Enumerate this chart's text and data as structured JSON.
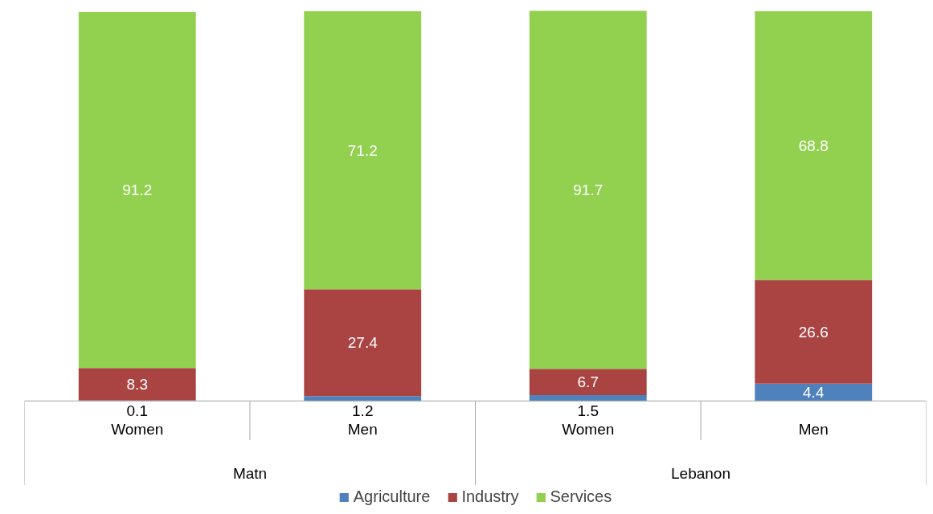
{
  "chart_data": {
    "type": "bar",
    "stacked": true,
    "categories": [
      "Women",
      "Men",
      "Women",
      "Men"
    ],
    "annotations": [
      "Matn",
      "Lebanon"
    ],
    "series": [
      {
        "name": "Agriculture",
        "color": "#4f81bd",
        "values": [
          0.1,
          1.2,
          1.5,
          4.4
        ]
      },
      {
        "name": "Industry",
        "color": "#aa4443",
        "values": [
          8.3,
          27.4,
          6.7,
          26.6
        ]
      },
      {
        "name": "Services",
        "color": "#92d050",
        "values": [
          91.2,
          71.2,
          91.7,
          68.8
        ]
      }
    ],
    "ylim": [
      0,
      100
    ],
    "data_labels": true,
    "grid": false,
    "legend": "bottom"
  }
}
